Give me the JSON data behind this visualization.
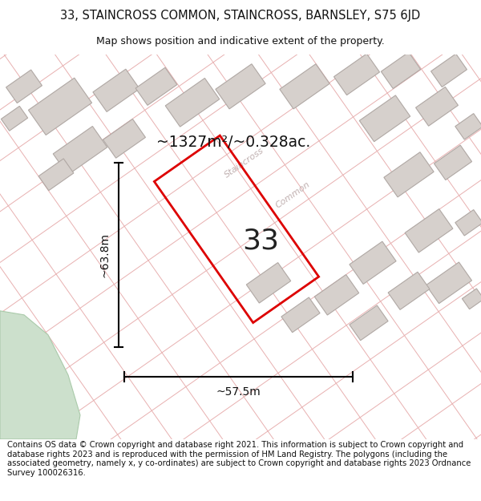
{
  "title": "33, STAINCROSS COMMON, STAINCROSS, BARNSLEY, S75 6JD",
  "subtitle": "Map shows position and indicative extent of the property.",
  "footer": "Contains OS data © Crown copyright and database right 2021. This information is subject to Crown copyright and database rights 2023 and is reproduced with the permission of HM Land Registry. The polygons (including the associated geometry, namely x, y co-ordinates) are subject to Crown copyright and database rights 2023 Ordnance Survey 100026316.",
  "area_label": "~1327m²/~0.328ac.",
  "width_label": "~57.5m",
  "height_label": "~63.8m",
  "number_label": "33",
  "bg_color": "#ffffff",
  "map_bg": "#f7f4f2",
  "building_color": "#d6d0cc",
  "building_edge": "#b0a8a4",
  "pink_line_color": "#e8b0b0",
  "red_plot_color": "#dd0000",
  "green_area_color": "#cce0cc",
  "green_edge_color": "#aacaaa",
  "title_fontsize": 10.5,
  "subtitle_fontsize": 9,
  "footer_fontsize": 7.2
}
